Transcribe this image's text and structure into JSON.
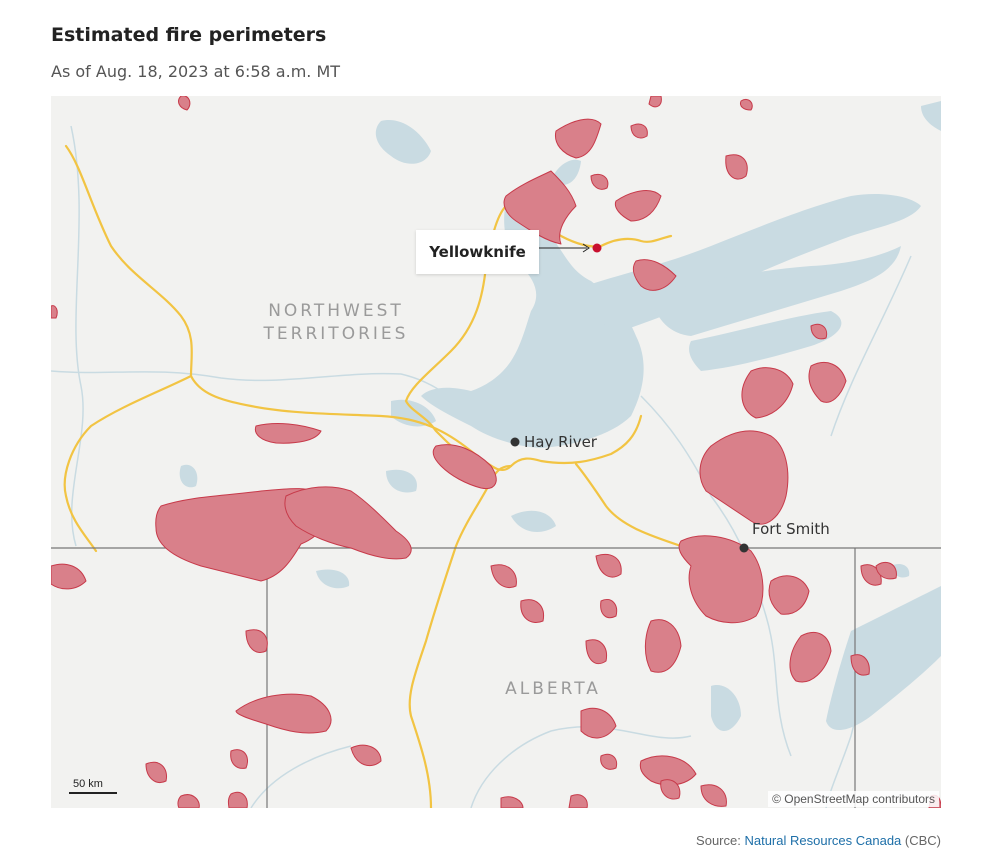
{
  "title": "Estimated fire perimeters",
  "subtitle": "As of Aug. 18, 2023 at 6:58 a.m. MT",
  "map": {
    "regions": {
      "nwt_line1": "NORTHWEST",
      "nwt_line2": "TERRITORIES",
      "alberta": "ALBERTA"
    },
    "cities": {
      "yellowknife": "Yellowknife",
      "hay_river": "Hay River",
      "fort_smith": "Fort Smith"
    },
    "scale_label": "50 km",
    "attribution": "© OpenStreetMap contributors",
    "colors": {
      "fire": "#d9808a",
      "fire_stroke": "#c73a4a",
      "water": "#c9dbe2",
      "road": "#f2c443",
      "land": "#f2f2f0",
      "marker": "#c8102e"
    }
  },
  "source": {
    "prefix": "Source: ",
    "link_text": "Natural Resources Canada",
    "suffix": " (CBC)"
  }
}
